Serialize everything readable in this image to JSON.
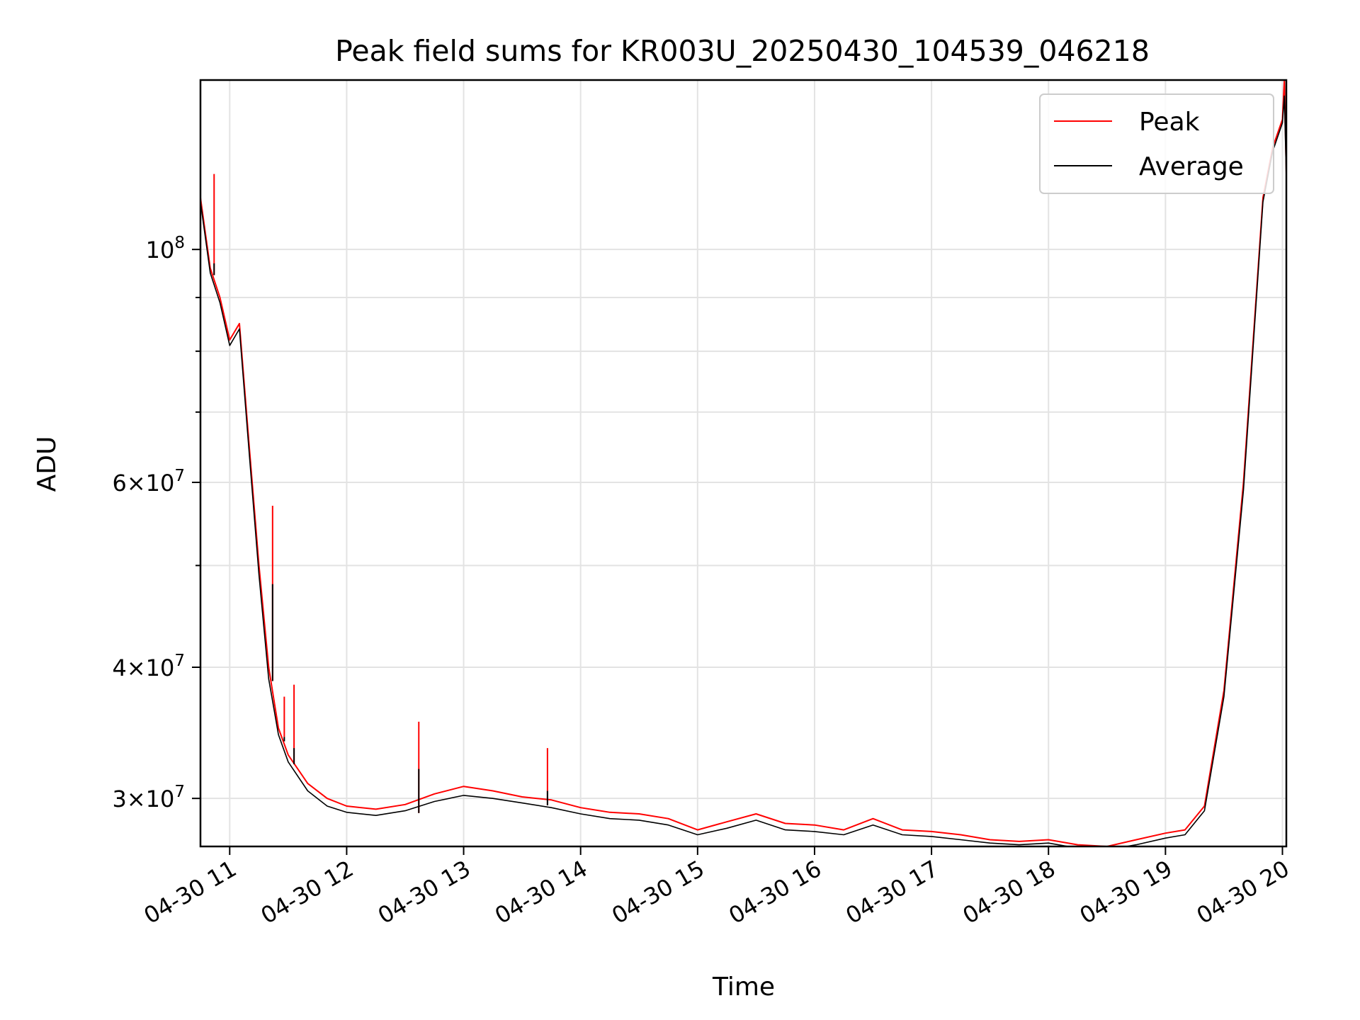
{
  "chart_data": {
    "type": "line",
    "title": "Peak field sums for KR003U_20250430_104539_046218",
    "xlabel": "Time",
    "ylabel": "ADU",
    "yscale": "log",
    "xlim": [
      "04-30 10:45",
      "04-30 20:02"
    ],
    "ylim": [
      27000000,
      145000000
    ],
    "x_ticks": [
      "04-30 11",
      "04-30 12",
      "04-30 13",
      "04-30 14",
      "04-30 15",
      "04-30 16",
      "04-30 17",
      "04-30 18",
      "04-30 19",
      "04-30 20"
    ],
    "y_ticks": [
      {
        "value": 30000000,
        "base": "3",
        "exp": "7"
      },
      {
        "value": 40000000,
        "base": "4",
        "exp": "7"
      },
      {
        "value": 60000000,
        "base": "6",
        "exp": "7"
      },
      {
        "value": 100000000,
        "base": "",
        "exp": "8"
      }
    ],
    "y_minor_ticks": [
      50000000,
      70000000,
      80000000,
      90000000
    ],
    "grid": true,
    "legend": "top-right",
    "x_times": [
      "10:45",
      "10:50",
      "10:55",
      "11:00",
      "11:05",
      "11:10",
      "11:15",
      "11:20",
      "11:25",
      "11:30",
      "11:40",
      "11:50",
      "12:00",
      "12:15",
      "12:30",
      "12:45",
      "13:00",
      "13:15",
      "13:30",
      "13:45",
      "14:00",
      "14:15",
      "14:30",
      "14:45",
      "15:00",
      "15:15",
      "15:30",
      "15:45",
      "16:00",
      "16:15",
      "16:30",
      "16:45",
      "17:00",
      "17:15",
      "17:30",
      "17:45",
      "18:00",
      "18:15",
      "18:30",
      "18:45",
      "19:00",
      "19:10",
      "19:20",
      "19:30",
      "19:40",
      "19:50",
      "19:55",
      "20:00",
      "20:01",
      "20:02"
    ],
    "series": [
      {
        "name": "Peak",
        "color": "#ff0000",
        "values": [
          112000000,
          96000000,
          90000000,
          82000000,
          85000000,
          65000000,
          50000000,
          40000000,
          35000000,
          33000000,
          31000000,
          30000000,
          29500000,
          29300000,
          29600000,
          30300000,
          30800000,
          30500000,
          30100000,
          29900000,
          29400000,
          29100000,
          29000000,
          28700000,
          28000000,
          28500000,
          29000000,
          28400000,
          28300000,
          28000000,
          28700000,
          28000000,
          27900000,
          27700000,
          27400000,
          27300000,
          27400000,
          27100000,
          27000000,
          27400000,
          27800000,
          28000000,
          29500000,
          38000000,
          60000000,
          112000000,
          125000000,
          133000000,
          145000000,
          118000000
        ]
      },
      {
        "name": "Average",
        "color": "#000000",
        "values": [
          111000000,
          95000000,
          89000000,
          81000000,
          84000000,
          64000000,
          49000000,
          39000000,
          34500000,
          32500000,
          30500000,
          29500000,
          29100000,
          28900000,
          29200000,
          29800000,
          30200000,
          30000000,
          29700000,
          29400000,
          29000000,
          28700000,
          28600000,
          28300000,
          27700000,
          28100000,
          28600000,
          28000000,
          27900000,
          27700000,
          28300000,
          27700000,
          27600000,
          27400000,
          27200000,
          27100000,
          27200000,
          26900000,
          26800000,
          27100000,
          27500000,
          27700000,
          29200000,
          37500000,
          59000000,
          111000000,
          124000000,
          132000000,
          140000000,
          117000000
        ]
      }
    ],
    "spikes": [
      {
        "time": "10:52",
        "peak": 118000000,
        "avg": 97000000
      },
      {
        "time": "11:22",
        "peak": 57000000,
        "avg": 48000000
      },
      {
        "time": "11:28",
        "peak": 37500000,
        "avg": 34000000
      },
      {
        "time": "11:33",
        "peak": 38500000,
        "avg": 33500000
      },
      {
        "time": "12:37",
        "peak": 35500000,
        "avg": 32000000
      },
      {
        "time": "13:43",
        "peak": 33500000,
        "avg": 30500000
      }
    ]
  }
}
